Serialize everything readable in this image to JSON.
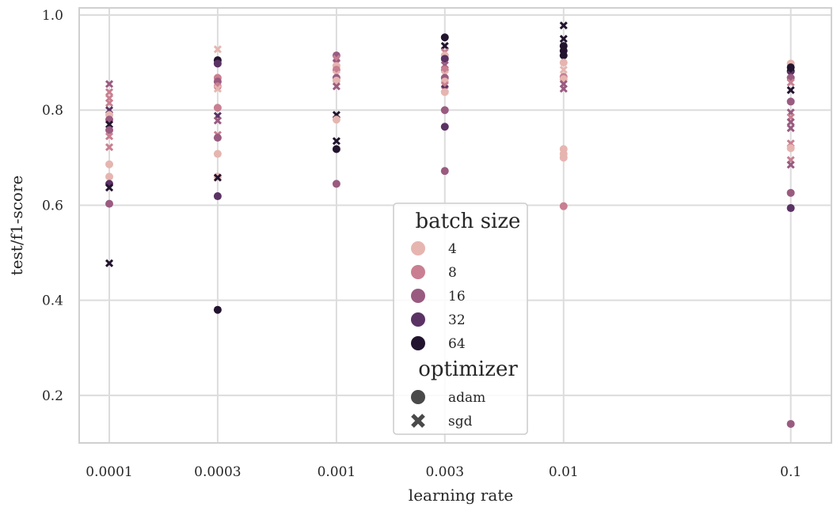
{
  "chart_data": {
    "type": "scatter",
    "xlabel": "learning rate",
    "ylabel": "test/f1-score",
    "xscale": "log",
    "x_ticks": [
      0.0001,
      0.0003,
      0.001,
      0.003,
      0.01,
      0.1
    ],
    "x_tick_labels": [
      "0.0001",
      "0.0003",
      "0.001",
      "0.003",
      "0.01",
      "0.1"
    ],
    "xlim": [
      7.37e-05,
      0.151
    ],
    "ylim": [
      0.1,
      1.015
    ],
    "y_ticks": [
      0.2,
      0.4,
      0.6,
      0.8,
      1.0
    ],
    "y_tick_labels": [
      "0.2",
      "0.4",
      "0.6",
      "0.8",
      "1.0"
    ],
    "grid": true,
    "legend": {
      "placement": "center-bottom",
      "hue_title": "batch size",
      "hue_entries": [
        {
          "label": "4",
          "color": "#e6b5b0"
        },
        {
          "label": "8",
          "color": "#c97f91"
        },
        {
          "label": "16",
          "color": "#9a5b80"
        },
        {
          "label": "32",
          "color": "#5b3264"
        },
        {
          "label": "64",
          "color": "#22142e"
        }
      ],
      "style_title": "optimizer",
      "style_entries": [
        {
          "label": "adam",
          "marker": "circle"
        },
        {
          "label": "sgd",
          "marker": "cross"
        }
      ]
    },
    "points": [
      {
        "x": 0.0001,
        "y": 0.855,
        "batch": "16",
        "opt": "sgd"
      },
      {
        "x": 0.0001,
        "y": 0.838,
        "batch": "8",
        "opt": "sgd"
      },
      {
        "x": 0.0001,
        "y": 0.825,
        "batch": "8",
        "opt": "sgd"
      },
      {
        "x": 0.0001,
        "y": 0.815,
        "batch": "8",
        "opt": "sgd"
      },
      {
        "x": 0.0001,
        "y": 0.8,
        "batch": "32",
        "opt": "sgd"
      },
      {
        "x": 0.0001,
        "y": 0.79,
        "batch": "4",
        "opt": "adam"
      },
      {
        "x": 0.0001,
        "y": 0.78,
        "batch": "16",
        "opt": "adam"
      },
      {
        "x": 0.0001,
        "y": 0.77,
        "batch": "64",
        "opt": "sgd"
      },
      {
        "x": 0.0001,
        "y": 0.758,
        "batch": "16",
        "opt": "adam"
      },
      {
        "x": 0.0001,
        "y": 0.745,
        "batch": "8",
        "opt": "sgd"
      },
      {
        "x": 0.0001,
        "y": 0.722,
        "batch": "8",
        "opt": "sgd"
      },
      {
        "x": 0.0001,
        "y": 0.686,
        "batch": "4",
        "opt": "adam"
      },
      {
        "x": 0.0001,
        "y": 0.66,
        "batch": "4",
        "opt": "adam"
      },
      {
        "x": 0.0001,
        "y": 0.645,
        "batch": "32",
        "opt": "adam"
      },
      {
        "x": 0.0001,
        "y": 0.637,
        "batch": "64",
        "opt": "sgd"
      },
      {
        "x": 0.0001,
        "y": 0.603,
        "batch": "16",
        "opt": "adam"
      },
      {
        "x": 0.0001,
        "y": 0.478,
        "batch": "64",
        "opt": "sgd"
      },
      {
        "x": 0.0003,
        "y": 0.928,
        "batch": "4",
        "opt": "sgd"
      },
      {
        "x": 0.0003,
        "y": 0.905,
        "batch": "64",
        "opt": "adam"
      },
      {
        "x": 0.0003,
        "y": 0.898,
        "batch": "32",
        "opt": "adam"
      },
      {
        "x": 0.0003,
        "y": 0.868,
        "batch": "8",
        "opt": "adam"
      },
      {
        "x": 0.0003,
        "y": 0.86,
        "batch": "16",
        "opt": "adam"
      },
      {
        "x": 0.0003,
        "y": 0.85,
        "batch": "8",
        "opt": "adam"
      },
      {
        "x": 0.0003,
        "y": 0.845,
        "batch": "4",
        "opt": "sgd"
      },
      {
        "x": 0.0003,
        "y": 0.805,
        "batch": "8",
        "opt": "adam"
      },
      {
        "x": 0.0003,
        "y": 0.788,
        "batch": "32",
        "opt": "sgd"
      },
      {
        "x": 0.0003,
        "y": 0.778,
        "batch": "16",
        "opt": "sgd"
      },
      {
        "x": 0.0003,
        "y": 0.748,
        "batch": "8",
        "opt": "sgd"
      },
      {
        "x": 0.0003,
        "y": 0.742,
        "batch": "16",
        "opt": "adam"
      },
      {
        "x": 0.0003,
        "y": 0.708,
        "batch": "4",
        "opt": "adam"
      },
      {
        "x": 0.0003,
        "y": 0.66,
        "batch": "4",
        "opt": "adam"
      },
      {
        "x": 0.0003,
        "y": 0.658,
        "batch": "64",
        "opt": "sgd"
      },
      {
        "x": 0.0003,
        "y": 0.619,
        "batch": "32",
        "opt": "adam"
      },
      {
        "x": 0.0003,
        "y": 0.38,
        "batch": "64",
        "opt": "adam"
      },
      {
        "x": 0.001,
        "y": 0.915,
        "batch": "16",
        "opt": "adam"
      },
      {
        "x": 0.001,
        "y": 0.908,
        "batch": "8",
        "opt": "sgd"
      },
      {
        "x": 0.001,
        "y": 0.9,
        "batch": "16",
        "opt": "sgd"
      },
      {
        "x": 0.001,
        "y": 0.893,
        "batch": "4",
        "opt": "adam"
      },
      {
        "x": 0.001,
        "y": 0.885,
        "batch": "8",
        "opt": "adam"
      },
      {
        "x": 0.001,
        "y": 0.875,
        "batch": "4",
        "opt": "sgd"
      },
      {
        "x": 0.001,
        "y": 0.868,
        "batch": "16",
        "opt": "adam"
      },
      {
        "x": 0.001,
        "y": 0.862,
        "batch": "4",
        "opt": "adam"
      },
      {
        "x": 0.001,
        "y": 0.85,
        "batch": "16",
        "opt": "sgd"
      },
      {
        "x": 0.001,
        "y": 0.79,
        "batch": "64",
        "opt": "sgd"
      },
      {
        "x": 0.001,
        "y": 0.78,
        "batch": "4",
        "opt": "adam"
      },
      {
        "x": 0.001,
        "y": 0.735,
        "batch": "64",
        "opt": "sgd"
      },
      {
        "x": 0.001,
        "y": 0.718,
        "batch": "64",
        "opt": "adam"
      },
      {
        "x": 0.001,
        "y": 0.645,
        "batch": "16",
        "opt": "adam"
      },
      {
        "x": 0.003,
        "y": 0.953,
        "batch": "64",
        "opt": "adam"
      },
      {
        "x": 0.003,
        "y": 0.935,
        "batch": "64",
        "opt": "sgd"
      },
      {
        "x": 0.003,
        "y": 0.922,
        "batch": "8",
        "opt": "sgd"
      },
      {
        "x": 0.003,
        "y": 0.915,
        "batch": "4",
        "opt": "adam"
      },
      {
        "x": 0.003,
        "y": 0.908,
        "batch": "32",
        "opt": "adam"
      },
      {
        "x": 0.003,
        "y": 0.895,
        "batch": "16",
        "opt": "sgd"
      },
      {
        "x": 0.003,
        "y": 0.885,
        "batch": "8",
        "opt": "adam"
      },
      {
        "x": 0.003,
        "y": 0.875,
        "batch": "4",
        "opt": "sgd"
      },
      {
        "x": 0.003,
        "y": 0.868,
        "batch": "16",
        "opt": "adam"
      },
      {
        "x": 0.003,
        "y": 0.86,
        "batch": "4",
        "opt": "adam"
      },
      {
        "x": 0.003,
        "y": 0.852,
        "batch": "8",
        "opt": "sgd"
      },
      {
        "x": 0.003,
        "y": 0.845,
        "batch": "32",
        "opt": "sgd"
      },
      {
        "x": 0.003,
        "y": 0.838,
        "batch": "4",
        "opt": "adam"
      },
      {
        "x": 0.003,
        "y": 0.8,
        "batch": "16",
        "opt": "adam"
      },
      {
        "x": 0.003,
        "y": 0.765,
        "batch": "32",
        "opt": "adam"
      },
      {
        "x": 0.003,
        "y": 0.672,
        "batch": "16",
        "opt": "adam"
      },
      {
        "x": 0.01,
        "y": 0.978,
        "batch": "64",
        "opt": "sgd"
      },
      {
        "x": 0.01,
        "y": 0.95,
        "batch": "64",
        "opt": "sgd"
      },
      {
        "x": 0.01,
        "y": 0.935,
        "batch": "64",
        "opt": "adam"
      },
      {
        "x": 0.01,
        "y": 0.925,
        "batch": "64",
        "opt": "adam"
      },
      {
        "x": 0.01,
        "y": 0.915,
        "batch": "64",
        "opt": "adam"
      },
      {
        "x": 0.01,
        "y": 0.9,
        "batch": "4",
        "opt": "adam"
      },
      {
        "x": 0.01,
        "y": 0.885,
        "batch": "4",
        "opt": "sgd"
      },
      {
        "x": 0.01,
        "y": 0.87,
        "batch": "8",
        "opt": "adam"
      },
      {
        "x": 0.01,
        "y": 0.865,
        "batch": "4",
        "opt": "adam"
      },
      {
        "x": 0.01,
        "y": 0.855,
        "batch": "16",
        "opt": "sgd"
      },
      {
        "x": 0.01,
        "y": 0.845,
        "batch": "16",
        "opt": "sgd"
      },
      {
        "x": 0.01,
        "y": 0.718,
        "batch": "4",
        "opt": "adam"
      },
      {
        "x": 0.01,
        "y": 0.708,
        "batch": "4",
        "opt": "adam"
      },
      {
        "x": 0.01,
        "y": 0.7,
        "batch": "4",
        "opt": "adam"
      },
      {
        "x": 0.01,
        "y": 0.598,
        "batch": "8",
        "opt": "adam"
      },
      {
        "x": 0.1,
        "y": 0.898,
        "batch": "4",
        "opt": "adam"
      },
      {
        "x": 0.1,
        "y": 0.89,
        "batch": "64",
        "opt": "adam"
      },
      {
        "x": 0.1,
        "y": 0.882,
        "batch": "64",
        "opt": "adam"
      },
      {
        "x": 0.1,
        "y": 0.875,
        "batch": "32",
        "opt": "sgd"
      },
      {
        "x": 0.1,
        "y": 0.868,
        "batch": "16",
        "opt": "adam"
      },
      {
        "x": 0.1,
        "y": 0.858,
        "batch": "8",
        "opt": "sgd"
      },
      {
        "x": 0.1,
        "y": 0.842,
        "batch": "64",
        "opt": "sgd"
      },
      {
        "x": 0.1,
        "y": 0.818,
        "batch": "16",
        "opt": "adam"
      },
      {
        "x": 0.1,
        "y": 0.795,
        "batch": "16",
        "opt": "sgd"
      },
      {
        "x": 0.1,
        "y": 0.785,
        "batch": "8",
        "opt": "sgd"
      },
      {
        "x": 0.1,
        "y": 0.775,
        "batch": "16",
        "opt": "sgd"
      },
      {
        "x": 0.1,
        "y": 0.762,
        "batch": "16",
        "opt": "sgd"
      },
      {
        "x": 0.1,
        "y": 0.73,
        "batch": "8",
        "opt": "sgd"
      },
      {
        "x": 0.1,
        "y": 0.72,
        "batch": "4",
        "opt": "adam"
      },
      {
        "x": 0.1,
        "y": 0.695,
        "batch": "8",
        "opt": "sgd"
      },
      {
        "x": 0.1,
        "y": 0.685,
        "batch": "16",
        "opt": "sgd"
      },
      {
        "x": 0.1,
        "y": 0.626,
        "batch": "16",
        "opt": "adam"
      },
      {
        "x": 0.1,
        "y": 0.594,
        "batch": "32",
        "opt": "adam"
      },
      {
        "x": 0.1,
        "y": 0.14,
        "batch": "16",
        "opt": "adam"
      }
    ]
  }
}
